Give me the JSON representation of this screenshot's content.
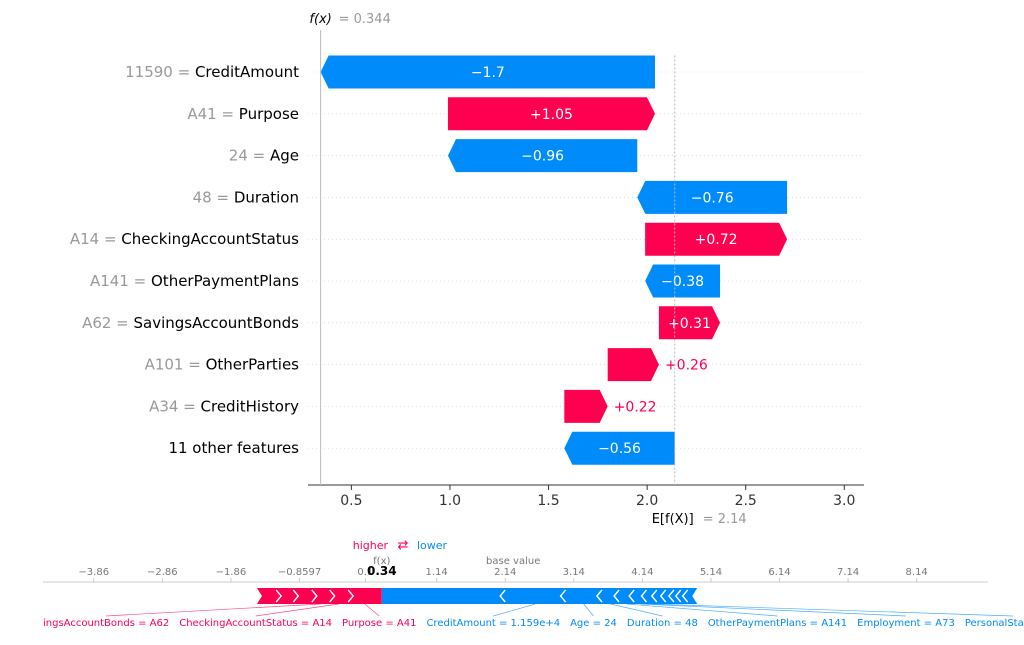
{
  "chart_data": [
    {
      "type": "waterfall",
      "fx_label": "f(x)",
      "fx_value": "= 0.344",
      "fx": 0.344,
      "ex_label": "E[f(X)]",
      "ex_value": "= 2.14",
      "ex": 2.14,
      "xlim": [
        0.28,
        3.1
      ],
      "ticks": [
        0.5,
        1.0,
        1.5,
        2.0,
        2.5,
        3.0
      ],
      "tick_labels": [
        "0.5",
        "1.0",
        "1.5",
        "2.0",
        "2.5",
        "3.0"
      ],
      "colors": {
        "positive": "#ff0051",
        "negative": "#008bfb",
        "muted": "#999999",
        "text": "#000000"
      },
      "rows": [
        {
          "value_text": "11590",
          "feature": "CreditAmount",
          "label": "−1.7",
          "start": 2.04,
          "end": 0.344
        },
        {
          "value_text": "A41",
          "feature": "Purpose",
          "label": "+1.05",
          "start": 0.99,
          "end": 2.04
        },
        {
          "value_text": "24",
          "feature": "Age",
          "label": "−0.96",
          "start": 1.95,
          "end": 0.99
        },
        {
          "value_text": "48",
          "feature": "Duration",
          "label": "−0.76",
          "start": 2.71,
          "end": 1.95
        },
        {
          "value_text": "A14",
          "feature": "CheckingAccountStatus",
          "label": "+0.72",
          "start": 1.99,
          "end": 2.71
        },
        {
          "value_text": "A141",
          "feature": "OtherPaymentPlans",
          "label": "−0.38",
          "start": 2.37,
          "end": 1.99
        },
        {
          "value_text": "A62",
          "feature": "SavingsAccountBonds",
          "label": "+0.31",
          "start": 2.06,
          "end": 2.37
        },
        {
          "value_text": "A101",
          "feature": "OtherParties",
          "label": "+0.26",
          "start": 1.8,
          "end": 2.06
        },
        {
          "value_text": "A34",
          "feature": "CreditHistory",
          "label": "+0.22",
          "start": 1.58,
          "end": 1.8
        },
        {
          "value_text": "",
          "feature": "11 other features",
          "label": "−0.56",
          "start": 2.14,
          "end": 1.58
        }
      ]
    },
    {
      "type": "force",
      "higher_label": "higher",
      "lower_label": "lower",
      "arrows_glyph": "⇄",
      "fx_label": "f(x)",
      "fx_value": "0.34",
      "fx": 0.34,
      "base_label": "base value",
      "base": 2.14,
      "ticks": [
        -3.86,
        -2.86,
        -1.86,
        -0.8597,
        0.1,
        1.14,
        2.14,
        3.14,
        4.14,
        5.14,
        6.14,
        7.14,
        8.14
      ],
      "tick_labels": [
        "−3.86",
        "−2.86",
        "−1.86",
        "−0.8597",
        "0.1",
        "1.14",
        "2.14",
        "3.14",
        "4.14",
        "5.14",
        "6.14",
        "7.14",
        "8.14"
      ],
      "xlim": [
        -4.6,
        9.18
      ],
      "bar_range": [
        -1.48,
        4.94
      ],
      "features": [
        {
          "label": "ingsAccountBonds = A62",
          "side": "pos"
        },
        {
          "label": "CheckingAccountStatus = A14",
          "side": "pos"
        },
        {
          "label": "Purpose = A41",
          "side": "pos"
        },
        {
          "label": "CreditAmount = 1.159e+4",
          "side": "neg"
        },
        {
          "label": "Age = 24",
          "side": "neg"
        },
        {
          "label": "Duration = 48",
          "side": "neg"
        },
        {
          "label": "OtherPaymentPlans = A141",
          "side": "neg"
        },
        {
          "label": "Employment = A73",
          "side": "neg"
        },
        {
          "label": "PersonalStatus = A",
          "side": "neg"
        }
      ],
      "pos_boundaries": [
        -1.2,
        -0.95,
        -0.68,
        -0.42,
        -0.15,
        0.34
      ],
      "neg_boundaries": [
        2.14,
        3.02,
        3.55,
        3.8,
        4.02,
        4.2,
        4.35,
        4.48,
        4.6,
        4.7,
        4.8
      ]
    }
  ]
}
